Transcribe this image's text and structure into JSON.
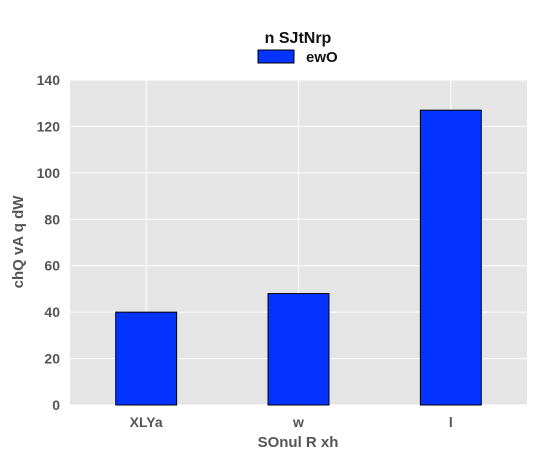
{
  "chart_data": {
    "type": "bar",
    "title": "n SJtNrp",
    "xlabel": "SOnul R xh",
    "ylabel": "chQ vA q dW",
    "categories": [
      "XLYa",
      "w",
      "l"
    ],
    "series": [
      {
        "name": "ewO",
        "values": [
          40,
          48,
          127
        ]
      }
    ],
    "ylim": [
      0,
      140
    ],
    "yticks": [
      0,
      20,
      40,
      60,
      80,
      100,
      120,
      140
    ],
    "grid": true,
    "legend_position": "top-center",
    "colors": {
      "bar": "#0433ff",
      "bar_edge": "#000000",
      "plot_background": "#e5e5e5",
      "grid": "#ffffff"
    }
  }
}
